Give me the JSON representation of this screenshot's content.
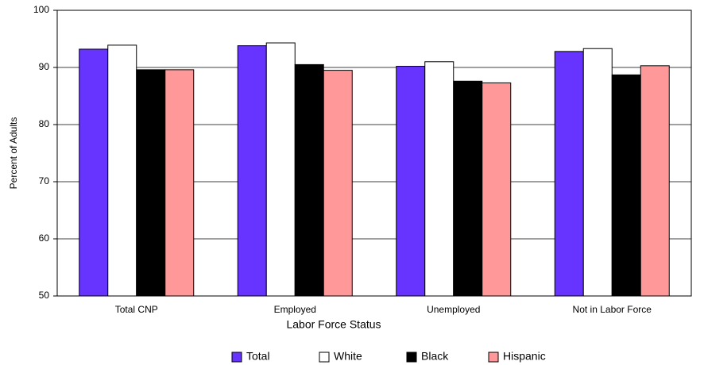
{
  "chart_data": {
    "type": "bar",
    "x_label": "Labor Force Status",
    "y_label": "Percent of Adults",
    "categories": [
      "Total CNP",
      "Employed",
      "Unemployed",
      "Not in Labor Force"
    ],
    "series": [
      {
        "name": "Total",
        "color": "#6633ff",
        "values": [
          93.2,
          93.8,
          90.2,
          92.8
        ]
      },
      {
        "name": "White",
        "color": "#ffffff",
        "values": [
          93.9,
          94.3,
          91.0,
          93.3
        ]
      },
      {
        "name": "Black",
        "color": "#000000",
        "values": [
          89.6,
          90.5,
          87.6,
          88.7
        ]
      },
      {
        "name": "Hispanic",
        "color": "#ff9999",
        "values": [
          89.6,
          89.5,
          87.3,
          90.3
        ]
      }
    ],
    "ylim": [
      50,
      100
    ],
    "yticks": [
      50,
      60,
      70,
      80,
      90,
      100
    ],
    "grid": true,
    "legend": "bottom"
  }
}
